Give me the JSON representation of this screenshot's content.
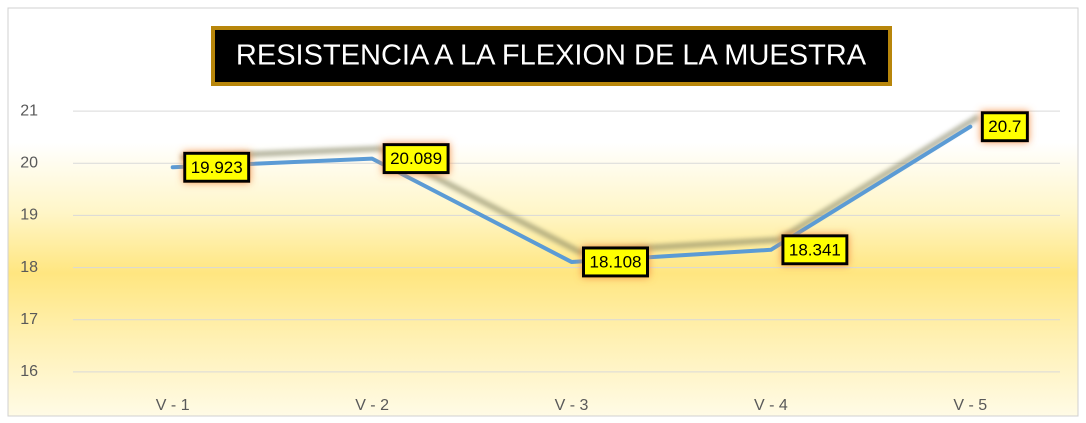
{
  "chart_data": {
    "type": "line",
    "title": "RESISTENCIA A LA FLEXION DE LA MUESTRA",
    "categories": [
      "V - 1",
      "V - 2",
      "V - 3",
      "V - 4",
      "V - 5"
    ],
    "values": [
      19.923,
      20.089,
      18.108,
      18.341,
      20.7
    ],
    "color": "#5b9bd5",
    "ylim": [
      15.5,
      21.5
    ],
    "yticks": [
      16,
      17,
      18,
      19,
      20,
      21
    ],
    "grid": true
  }
}
